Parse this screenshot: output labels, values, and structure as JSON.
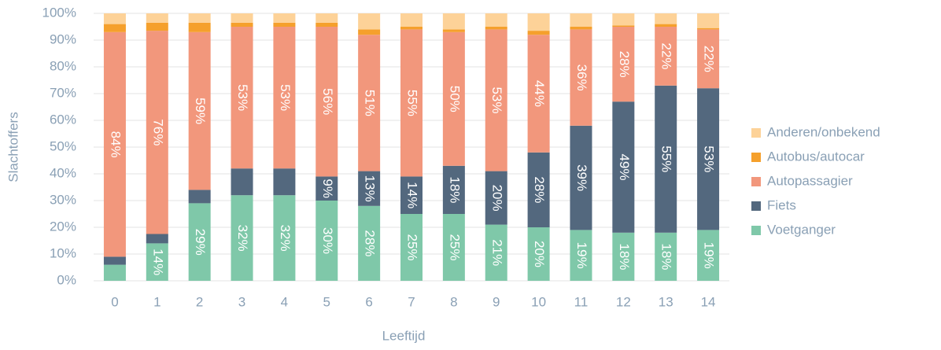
{
  "chart_data": {
    "type": "stacked_bar",
    "x_label": "Leeftijd",
    "y_label": "Slachtoffers",
    "categories": [
      "0",
      "1",
      "2",
      "3",
      "4",
      "5",
      "6",
      "7",
      "8",
      "9",
      "10",
      "11",
      "12",
      "13",
      "14"
    ],
    "ylim": [
      0,
      100
    ],
    "yticks": [
      {
        "value": 0,
        "label": "0%"
      },
      {
        "value": 10,
        "label": "10%"
      },
      {
        "value": 20,
        "label": "20%"
      },
      {
        "value": 30,
        "label": "30%"
      },
      {
        "value": 40,
        "label": "40%"
      },
      {
        "value": 50,
        "label": "50%"
      },
      {
        "value": 60,
        "label": "60%"
      },
      {
        "value": 70,
        "label": "70%"
      },
      {
        "value": 80,
        "label": "80%"
      },
      {
        "value": 90,
        "label": "90%"
      },
      {
        "value": 100,
        "label": "100%"
      }
    ],
    "grid": true,
    "legend": "right",
    "series": [
      {
        "name": "Voetganger",
        "color": "#7fc8a9",
        "values": [
          6,
          14,
          29,
          32,
          32,
          30,
          28,
          25,
          25,
          21,
          20,
          19,
          18,
          18,
          19
        ],
        "value_labels": [
          null,
          "14%",
          "29%",
          "32%",
          "32%",
          "30%",
          "28%",
          "25%",
          "25%",
          "21%",
          "20%",
          "19%",
          "18%",
          "18%",
          "19%"
        ]
      },
      {
        "name": "Fiets",
        "color": "#53687e",
        "values": [
          3,
          3.5,
          5,
          10,
          10,
          9,
          13,
          14,
          18,
          20,
          28,
          39,
          49,
          55,
          53
        ],
        "value_labels": [
          null,
          null,
          null,
          null,
          null,
          "9%",
          "13%",
          "14%",
          "18%",
          "20%",
          "28%",
          "39%",
          "49%",
          "55%",
          "53%"
        ]
      },
      {
        "name": "Autopassagier",
        "color": "#f2977c",
        "values": [
          84,
          76,
          59,
          53,
          53,
          56,
          51,
          55,
          50,
          53,
          44,
          36,
          28,
          22,
          22
        ],
        "value_labels": [
          "84%",
          "76%",
          "59%",
          "53%",
          "53%",
          "56%",
          "51%",
          "55%",
          "50%",
          "53%",
          "44%",
          "36%",
          "28%",
          "22%",
          "22%"
        ]
      },
      {
        "name": "Autobus/autocar",
        "color": "#f5a02c",
        "values": [
          3,
          3,
          3.5,
          1.5,
          1.5,
          1.5,
          2,
          1,
          1,
          1,
          1.5,
          1,
          0.5,
          1,
          0.5
        ]
      },
      {
        "name": "Anderen/onbekend",
        "color": "#fdd298",
        "values": [
          4,
          3.5,
          3.5,
          3.5,
          3.5,
          3.5,
          6,
          5,
          6,
          5,
          6.5,
          5,
          4.5,
          4,
          5.5
        ]
      }
    ]
  }
}
